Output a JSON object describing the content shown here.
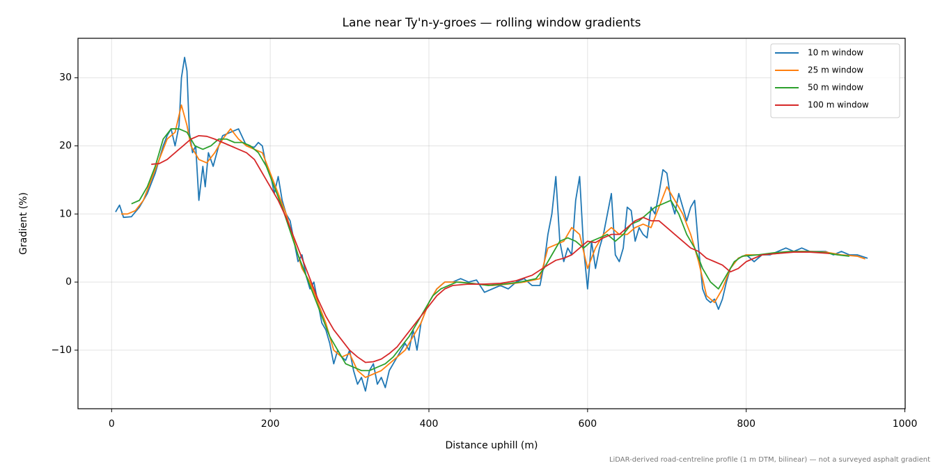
{
  "chart_data": {
    "type": "line",
    "title": "Lane near Ty'n-y-groes — rolling window gradients",
    "xlabel": "Distance uphill (m)",
    "ylabel": "Gradient (%)",
    "note": "LiDAR-derived road-centreline profile (1 m DTM, bilinear) — not a surveyed asphalt gradient",
    "xlim": [
      -42.4,
      1000.4
    ],
    "ylim": [
      -18.6,
      35.8
    ],
    "xticks": [
      0,
      200,
      400,
      600,
      800,
      1000
    ],
    "yticks": [
      {
        "value": -10,
        "label": "−10"
      },
      0,
      10,
      20,
      30
    ],
    "grid": true,
    "legend": "upper right",
    "series": [
      {
        "name": "10 m window",
        "color": "#1f77b4",
        "x": [
          5,
          10,
          15,
          25,
          35,
          45,
          55,
          65,
          70,
          75,
          80,
          85,
          88,
          92,
          95,
          98,
          102,
          106,
          110,
          115,
          118,
          122,
          128,
          135,
          140,
          150,
          160,
          170,
          180,
          185,
          190,
          195,
          200,
          205,
          210,
          215,
          220,
          225,
          230,
          235,
          240,
          245,
          250,
          255,
          260,
          265,
          270,
          275,
          280,
          285,
          290,
          295,
          300,
          305,
          310,
          315,
          320,
          325,
          330,
          335,
          340,
          345,
          350,
          355,
          360,
          365,
          370,
          375,
          380,
          385,
          390,
          400,
          410,
          420,
          430,
          440,
          450,
          460,
          470,
          480,
          490,
          500,
          510,
          520,
          530,
          540,
          545,
          550,
          555,
          560,
          565,
          570,
          575,
          580,
          585,
          590,
          595,
          600,
          605,
          610,
          615,
          620,
          625,
          630,
          635,
          640,
          645,
          650,
          655,
          660,
          665,
          670,
          675,
          680,
          685,
          690,
          695,
          700,
          705,
          710,
          715,
          720,
          725,
          730,
          735,
          740,
          745,
          750,
          755,
          760,
          765,
          770,
          775,
          780,
          790,
          800,
          810,
          820,
          830,
          840,
          850,
          860,
          870,
          880,
          890,
          900,
          910,
          920,
          930,
          940,
          953
        ],
        "values": [
          10.3,
          11.3,
          9.5,
          9.6,
          11,
          13,
          16,
          20,
          21.5,
          22.5,
          20,
          23,
          30,
          33,
          31,
          22,
          19,
          20,
          12,
          17,
          14,
          19,
          17,
          20,
          21.5,
          22,
          22.5,
          20,
          19.8,
          20.5,
          20,
          17,
          16,
          13,
          15.5,
          12,
          10,
          9,
          6,
          3,
          4,
          1,
          -1,
          0,
          -3,
          -6,
          -7,
          -9,
          -12,
          -10,
          -11,
          -11.5,
          -10,
          -13,
          -15,
          -14,
          -16,
          -13,
          -12,
          -15,
          -14,
          -15.5,
          -13,
          -12,
          -11,
          -10,
          -9,
          -10,
          -7,
          -10,
          -6,
          -3,
          -1,
          0,
          0,
          0.5,
          0,
          0.3,
          -1.5,
          -1,
          -0.5,
          -1,
          0,
          0.5,
          -0.5,
          -0.5,
          2.5,
          7,
          10,
          15.5,
          6,
          3,
          5,
          4,
          12,
          15.5,
          5,
          -1,
          6,
          2,
          5,
          7,
          10,
          13,
          4,
          3,
          5,
          11,
          10.5,
          6,
          8,
          7,
          6.5,
          11,
          10,
          13,
          16.5,
          16,
          12,
          10,
          13,
          11,
          9,
          11,
          12,
          5,
          -1,
          -2.5,
          -3,
          -2.5,
          -4,
          -2.5,
          0,
          2,
          3.5,
          4,
          3,
          4,
          4,
          4.5,
          5,
          4.5,
          5,
          4.5,
          4.5,
          4.5,
          4,
          4.5,
          4,
          4,
          3.5
        ]
      },
      {
        "name": "25 m window",
        "color": "#ff7f0e",
        "x": [
          12,
          20,
          30,
          40,
          50,
          60,
          70,
          80,
          88,
          95,
          100,
          110,
          120,
          130,
          140,
          150,
          160,
          170,
          180,
          190,
          200,
          210,
          220,
          230,
          240,
          250,
          260,
          270,
          280,
          290,
          300,
          310,
          320,
          330,
          340,
          350,
          360,
          370,
          380,
          390,
          400,
          410,
          420,
          440,
          460,
          480,
          500,
          520,
          540,
          550,
          560,
          570,
          580,
          590,
          600,
          610,
          620,
          630,
          640,
          650,
          660,
          670,
          680,
          690,
          700,
          710,
          720,
          730,
          740,
          750,
          760,
          770,
          780,
          790,
          800,
          820,
          840,
          860,
          880,
          900,
          920,
          940,
          950
        ],
        "values": [
          10,
          10,
          10.5,
          12,
          15,
          18,
          21,
          22,
          26,
          23,
          20,
          18,
          17.5,
          19,
          21,
          22.5,
          21,
          20,
          19.5,
          19,
          16,
          13,
          10,
          6,
          2,
          0,
          -3,
          -6,
          -10,
          -11,
          -10.5,
          -13,
          -14,
          -13.5,
          -13,
          -12,
          -11,
          -10,
          -8,
          -6,
          -3,
          -1,
          0,
          0,
          -0.3,
          -0.5,
          -0.3,
          0,
          0.5,
          5,
          5.5,
          6,
          8,
          7,
          2,
          5,
          7,
          8,
          7,
          7,
          8,
          8.5,
          8,
          11,
          14,
          12,
          10,
          7,
          3,
          -2,
          -3,
          -1,
          2,
          3.5,
          4,
          4,
          4.2,
          4.5,
          4.5,
          4.4,
          4,
          3.8,
          3.4
        ]
      },
      {
        "name": "50 m window",
        "color": "#2ca02c",
        "x": [
          25,
          35,
          45,
          55,
          65,
          75,
          85,
          95,
          105,
          115,
          125,
          135,
          145,
          155,
          165,
          175,
          185,
          195,
          205,
          215,
          225,
          235,
          245,
          255,
          265,
          275,
          285,
          295,
          305,
          315,
          325,
          335,
          345,
          355,
          365,
          375,
          385,
          395,
          405,
          415,
          425,
          435,
          455,
          475,
          495,
          515,
          535,
          545,
          555,
          565,
          575,
          585,
          595,
          605,
          615,
          625,
          635,
          645,
          655,
          665,
          675,
          685,
          695,
          705,
          715,
          725,
          735,
          745,
          755,
          765,
          775,
          785,
          795,
          815,
          835,
          855,
          875,
          895,
          915,
          930
        ],
        "values": [
          11.5,
          12,
          14,
          17,
          21,
          22.5,
          22.5,
          22,
          20,
          19.5,
          20,
          21,
          21,
          20.5,
          20.5,
          20,
          19,
          17,
          14,
          11,
          7.5,
          4,
          1,
          -2,
          -5,
          -8,
          -10,
          -12,
          -12.5,
          -13,
          -13,
          -12.5,
          -12,
          -11,
          -9.5,
          -8,
          -6,
          -4,
          -2,
          -1,
          -0.5,
          0,
          -0.2,
          -0.5,
          -0.3,
          0,
          0.5,
          2,
          4,
          6,
          6.5,
          6,
          5,
          6,
          6.5,
          7,
          6,
          7,
          8.5,
          9,
          10,
          11,
          11.5,
          12,
          10,
          7,
          5,
          2,
          0,
          -1,
          1,
          3,
          3.8,
          4,
          4.3,
          4.5,
          4.5,
          4.4,
          4,
          3.8
        ]
      },
      {
        "name": "100 m window",
        "color": "#d62728",
        "x": [
          50,
          60,
          70,
          80,
          90,
          100,
          110,
          120,
          130,
          140,
          150,
          160,
          170,
          180,
          190,
          200,
          210,
          220,
          230,
          240,
          250,
          260,
          270,
          280,
          290,
          300,
          310,
          320,
          330,
          340,
          350,
          360,
          370,
          380,
          390,
          400,
          410,
          420,
          430,
          450,
          470,
          490,
          510,
          530,
          550,
          560,
          570,
          580,
          590,
          600,
          610,
          620,
          630,
          640,
          650,
          660,
          670,
          680,
          690,
          700,
          710,
          720,
          730,
          740,
          750,
          760,
          770,
          780,
          790,
          800,
          810,
          820,
          840,
          860,
          880,
          905
        ],
        "values": [
          17.3,
          17.4,
          18,
          19,
          20,
          21,
          21.5,
          21.4,
          21,
          20.5,
          20,
          19.5,
          19,
          18,
          16,
          14,
          12,
          9.5,
          6.5,
          3.5,
          0.5,
          -2.5,
          -5,
          -7,
          -8.5,
          -10,
          -11,
          -11.8,
          -11.7,
          -11.3,
          -10.5,
          -9.5,
          -8,
          -6.5,
          -5,
          -3.5,
          -2,
          -1,
          -0.5,
          -0.3,
          -0.3,
          -0.2,
          0.2,
          1,
          2.5,
          3.2,
          3.5,
          4,
          5,
          6,
          5.8,
          6.5,
          7,
          7,
          8,
          9,
          9.5,
          9,
          9,
          8,
          7,
          6,
          5,
          4.5,
          3.5,
          3,
          2.5,
          1.5,
          2,
          3,
          3.5,
          4,
          4.2,
          4.4,
          4.4,
          4.2
        ]
      }
    ]
  }
}
